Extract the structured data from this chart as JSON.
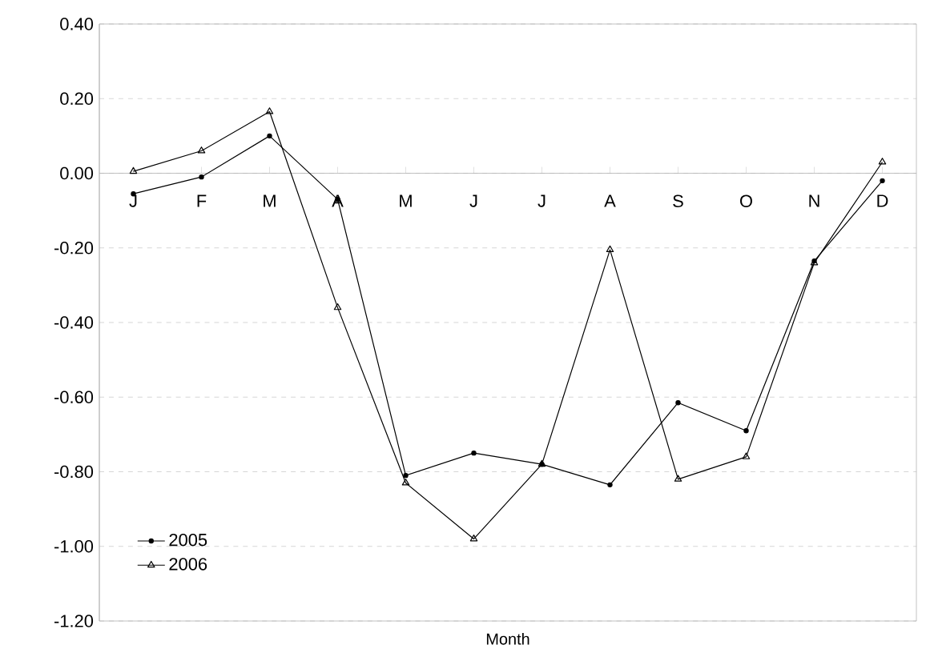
{
  "chart_data": {
    "type": "line",
    "xlabel": "Month",
    "categories": [
      "J",
      "F",
      "M",
      "A",
      "M",
      "J",
      "J",
      "A",
      "S",
      "O",
      "N",
      "D"
    ],
    "series": [
      {
        "name": "2005",
        "color": "#000000",
        "marker": "circle",
        "values": [
          -0.055,
          -0.01,
          0.1,
          -0.07,
          -0.81,
          -0.75,
          -0.78,
          -0.835,
          -0.615,
          -0.69,
          -0.235,
          -0.02
        ]
      },
      {
        "name": "2006",
        "color": "#000000",
        "marker": "triangle",
        "values": [
          0.005,
          0.06,
          0.165,
          -0.36,
          -0.83,
          -0.98,
          -0.78,
          -0.205,
          -0.82,
          -0.76,
          -0.24,
          0.03
        ]
      }
    ],
    "ylim": [
      -1.2,
      0.4
    ],
    "yticks": [
      {
        "value": -1.2,
        "label": "-1.20"
      },
      {
        "value": -1.0,
        "label": "-1.00"
      },
      {
        "value": -0.8,
        "label": "-0.80"
      },
      {
        "value": -0.6,
        "label": "-0.60"
      },
      {
        "value": -0.4,
        "label": "-0.40"
      },
      {
        "value": -0.2,
        "label": "-0.20"
      },
      {
        "value": 0,
        "label": "0.00"
      },
      {
        "value": 0.2,
        "label": "0.20"
      },
      {
        "value": 0.4,
        "label": "0.40"
      }
    ],
    "grid": "y",
    "legend": "bottom left",
    "line_style": "solid"
  }
}
